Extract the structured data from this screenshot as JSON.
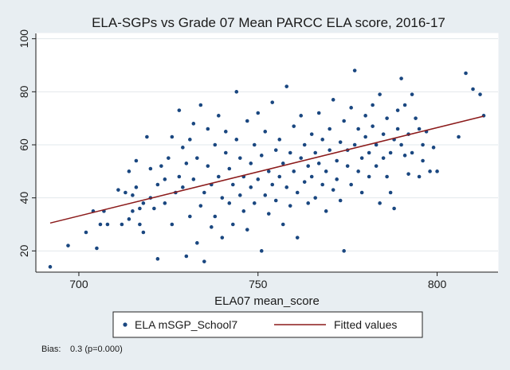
{
  "chart_data": {
    "type": "scatter",
    "title": "ELA-SGPs vs Grade 07 Mean PARCC ELA score, 2016-17",
    "xlabel": "ELA07 mean_score",
    "ylabel": "",
    "xlim": [
      688,
      817
    ],
    "ylim": [
      12,
      102
    ],
    "x_ticks": [
      700,
      750,
      800
    ],
    "y_ticks": [
      20,
      40,
      60,
      80,
      100
    ],
    "grid": "horizontal",
    "legend_position": "bottom",
    "colors": {
      "points": "#1a4780",
      "fit_line": "#8b1a1a",
      "background": "#e8eef2",
      "plot_bg": "#ffffff",
      "grid": "#e2e8ec"
    },
    "series": [
      {
        "name": "ELA mSGP_School7",
        "kind": "scatter",
        "points": [
          [
            692,
            14
          ],
          [
            697,
            22
          ],
          [
            702,
            27
          ],
          [
            704,
            35
          ],
          [
            705,
            21
          ],
          [
            706,
            30
          ],
          [
            708,
            30
          ],
          [
            707,
            35
          ],
          [
            711,
            43
          ],
          [
            712,
            30
          ],
          [
            713,
            42
          ],
          [
            714,
            50
          ],
          [
            715,
            41
          ],
          [
            714,
            32
          ],
          [
            715,
            35
          ],
          [
            716,
            54
          ],
          [
            717,
            36
          ],
          [
            716,
            44
          ],
          [
            717,
            30
          ],
          [
            718,
            38
          ],
          [
            718,
            27
          ],
          [
            719,
            63
          ],
          [
            720,
            51
          ],
          [
            720,
            40
          ],
          [
            721,
            36
          ],
          [
            722,
            17
          ],
          [
            722,
            45
          ],
          [
            723,
            52
          ],
          [
            724,
            38
          ],
          [
            724,
            47
          ],
          [
            725,
            55
          ],
          [
            726,
            30
          ],
          [
            726,
            63
          ],
          [
            727,
            42
          ],
          [
            728,
            48
          ],
          [
            728,
            73
          ],
          [
            729,
            59
          ],
          [
            729,
            44
          ],
          [
            730,
            18
          ],
          [
            730,
            53
          ],
          [
            731,
            33
          ],
          [
            731,
            62
          ],
          [
            732,
            47
          ],
          [
            732,
            68
          ],
          [
            733,
            23
          ],
          [
            733,
            55
          ],
          [
            734,
            37
          ],
          [
            734,
            75
          ],
          [
            735,
            42
          ],
          [
            735,
            16
          ],
          [
            736,
            52
          ],
          [
            736,
            66
          ],
          [
            737,
            29
          ],
          [
            737,
            45
          ],
          [
            738,
            60
          ],
          [
            738,
            33
          ],
          [
            739,
            48
          ],
          [
            739,
            71
          ],
          [
            740,
            40
          ],
          [
            740,
            25
          ],
          [
            741,
            57
          ],
          [
            741,
            65
          ],
          [
            742,
            38
          ],
          [
            742,
            51
          ],
          [
            743,
            45
          ],
          [
            743,
            30
          ],
          [
            744,
            62
          ],
          [
            744,
            80
          ],
          [
            745,
            41
          ],
          [
            745,
            55
          ],
          [
            746,
            35
          ],
          [
            746,
            48
          ],
          [
            747,
            69
          ],
          [
            747,
            28
          ],
          [
            748,
            53
          ],
          [
            748,
            44
          ],
          [
            749,
            38
          ],
          [
            749,
            60
          ],
          [
            750,
            47
          ],
          [
            750,
            72
          ],
          [
            751,
            20
          ],
          [
            751,
            56
          ],
          [
            752,
            41
          ],
          [
            752,
            65
          ],
          [
            753,
            50
          ],
          [
            753,
            34
          ],
          [
            754,
            45
          ],
          [
            754,
            76
          ],
          [
            755,
            58
          ],
          [
            755,
            39
          ],
          [
            756,
            48
          ],
          [
            756,
            62
          ],
          [
            757,
            30
          ],
          [
            757,
            53
          ],
          [
            758,
            82
          ],
          [
            758,
            44
          ],
          [
            759,
            57
          ],
          [
            759,
            37
          ],
          [
            760,
            50
          ],
          [
            760,
            67
          ],
          [
            761,
            42
          ],
          [
            761,
            25
          ],
          [
            762,
            55
          ],
          [
            762,
            71
          ],
          [
            763,
            46
          ],
          [
            763,
            60
          ],
          [
            764,
            38
          ],
          [
            764,
            52
          ],
          [
            765,
            64
          ],
          [
            765,
            48
          ],
          [
            766,
            57
          ],
          [
            766,
            40
          ],
          [
            767,
            72
          ],
          [
            767,
            53
          ],
          [
            768,
            45
          ],
          [
            768,
            62
          ],
          [
            769,
            50
          ],
          [
            769,
            35
          ],
          [
            770,
            58
          ],
          [
            770,
            66
          ],
          [
            771,
            43
          ],
          [
            771,
            77
          ],
          [
            772,
            54
          ],
          [
            772,
            47
          ],
          [
            773,
            61
          ],
          [
            773,
            39
          ],
          [
            774,
            69
          ],
          [
            774,
            20
          ],
          [
            775,
            52
          ],
          [
            775,
            58
          ],
          [
            776,
            45
          ],
          [
            776,
            74
          ],
          [
            777,
            88
          ],
          [
            777,
            60
          ],
          [
            778,
            50
          ],
          [
            778,
            66
          ],
          [
            779,
            55
          ],
          [
            779,
            42
          ],
          [
            780,
            63
          ],
          [
            780,
            71
          ],
          [
            781,
            48
          ],
          [
            781,
            57
          ],
          [
            782,
            67
          ],
          [
            782,
            75
          ],
          [
            783,
            52
          ],
          [
            783,
            60
          ],
          [
            784,
            38
          ],
          [
            784,
            79
          ],
          [
            785,
            64
          ],
          [
            785,
            55
          ],
          [
            786,
            48
          ],
          [
            786,
            70
          ],
          [
            787,
            42
          ],
          [
            787,
            57
          ],
          [
            788,
            62
          ],
          [
            788,
            36
          ],
          [
            789,
            73
          ],
          [
            789,
            66
          ],
          [
            790,
            85
          ],
          [
            790,
            60
          ],
          [
            791,
            56
          ],
          [
            791,
            75
          ],
          [
            792,
            49
          ],
          [
            792,
            64
          ],
          [
            793,
            79
          ],
          [
            793,
            57
          ],
          [
            794,
            70
          ],
          [
            795,
            66
          ],
          [
            795,
            48
          ],
          [
            796,
            60
          ],
          [
            796,
            54
          ],
          [
            797,
            65
          ],
          [
            798,
            50
          ],
          [
            799,
            59
          ],
          [
            800,
            50
          ],
          [
            806,
            63
          ],
          [
            808,
            87
          ],
          [
            810,
            81
          ],
          [
            812,
            79
          ],
          [
            813,
            71
          ]
        ]
      },
      {
        "name": "Fitted values",
        "kind": "line",
        "points": [
          [
            692,
            30.5
          ],
          [
            813,
            70.8
          ]
        ]
      }
    ],
    "annotations": [
      {
        "label": "Bias:",
        "value": "0.3 (p=0.000)"
      }
    ]
  }
}
